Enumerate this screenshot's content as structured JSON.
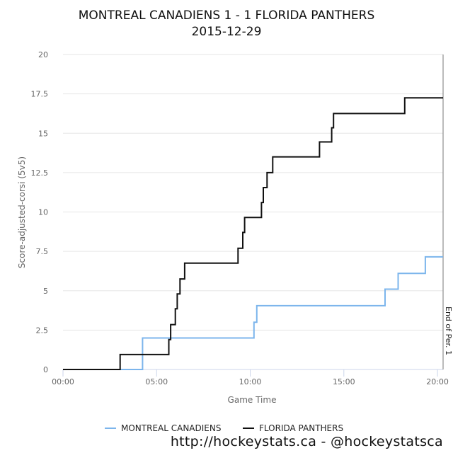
{
  "chart_data": {
    "type": "line",
    "step": true,
    "title": "MONTREAL CANADIENS 1 - 1 FLORIDA PANTHERS",
    "subtitle": "2015-12-29",
    "xlabel": "Game Time",
    "ylabel": "Score-adjusted-corsi (5v5)",
    "xlim": [
      0,
      20.3
    ],
    "ylim": [
      0,
      20
    ],
    "x_ticks": [
      {
        "value": 0,
        "label": "00:00"
      },
      {
        "value": 5,
        "label": "05:00"
      },
      {
        "value": 10,
        "label": "10:00"
      },
      {
        "value": 15,
        "label": "15:00"
      },
      {
        "value": 20,
        "label": "20:00"
      }
    ],
    "y_ticks": [
      {
        "value": 0,
        "label": "0"
      },
      {
        "value": 2.5,
        "label": "2.5"
      },
      {
        "value": 5,
        "label": "5"
      },
      {
        "value": 7.5,
        "label": "7.5"
      },
      {
        "value": 10,
        "label": "10"
      },
      {
        "value": 12.5,
        "label": "12.5"
      },
      {
        "value": 15,
        "label": "15"
      },
      {
        "value": 17.5,
        "label": "17.5"
      },
      {
        "value": 20,
        "label": "20"
      }
    ],
    "annotation": {
      "x": 20.3,
      "label": "End of Per. 1"
    },
    "series": [
      {
        "name": "MONTREAL CANADIENS",
        "color": "#7cb5ec",
        "points": [
          [
            0,
            0
          ],
          [
            4.25,
            0
          ],
          [
            4.25,
            2
          ],
          [
            10.2,
            2
          ],
          [
            10.2,
            3
          ],
          [
            10.35,
            3
          ],
          [
            10.35,
            4.05
          ],
          [
            17.2,
            4.05
          ],
          [
            17.2,
            5.1
          ],
          [
            17.9,
            5.1
          ],
          [
            17.9,
            6.1
          ],
          [
            19.35,
            6.1
          ],
          [
            19.35,
            7.15
          ],
          [
            20.3,
            7.15
          ]
        ]
      },
      {
        "name": "FLORIDA PANTHERS",
        "color": "#111111",
        "points": [
          [
            0,
            0
          ],
          [
            3.05,
            0
          ],
          [
            3.05,
            0.95
          ],
          [
            5.65,
            0.95
          ],
          [
            5.65,
            1.9
          ],
          [
            5.75,
            1.9
          ],
          [
            5.75,
            2.85
          ],
          [
            6.0,
            2.85
          ],
          [
            6.0,
            3.85
          ],
          [
            6.1,
            3.85
          ],
          [
            6.1,
            4.8
          ],
          [
            6.25,
            4.8
          ],
          [
            6.25,
            5.75
          ],
          [
            6.5,
            5.75
          ],
          [
            6.5,
            6.75
          ],
          [
            9.35,
            6.75
          ],
          [
            9.35,
            7.7
          ],
          [
            9.6,
            7.7
          ],
          [
            9.6,
            8.7
          ],
          [
            9.7,
            8.7
          ],
          [
            9.7,
            9.65
          ],
          [
            10.6,
            9.65
          ],
          [
            10.6,
            10.6
          ],
          [
            10.7,
            10.6
          ],
          [
            10.7,
            11.55
          ],
          [
            10.9,
            11.55
          ],
          [
            10.9,
            12.5
          ],
          [
            11.2,
            12.5
          ],
          [
            11.2,
            13.5
          ],
          [
            13.7,
            13.5
          ],
          [
            13.7,
            14.45
          ],
          [
            14.35,
            14.45
          ],
          [
            14.35,
            15.35
          ],
          [
            14.45,
            15.35
          ],
          [
            14.45,
            16.25
          ],
          [
            18.25,
            16.25
          ],
          [
            18.25,
            17.25
          ],
          [
            20.3,
            17.25
          ]
        ]
      }
    ]
  },
  "footer_text": "http://hockeystats.ca - @hockeystatsca"
}
